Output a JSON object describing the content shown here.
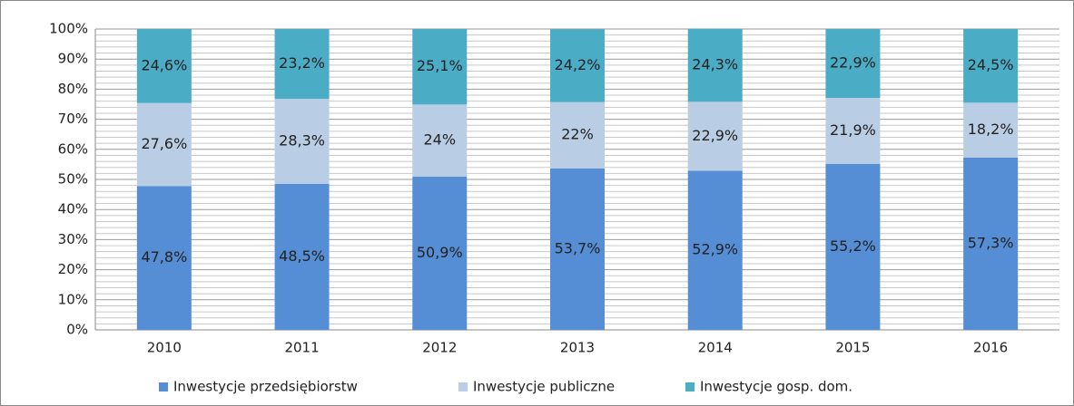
{
  "chart_data": {
    "type": "stacked_bar",
    "categories": [
      "2010",
      "2011",
      "2012",
      "2013",
      "2014",
      "2015",
      "2016"
    ],
    "series": [
      {
        "name": "Inwestycje przedsiębiorstw",
        "color": "#558ed5",
        "values": [
          47.8,
          48.5,
          50.9,
          53.7,
          52.9,
          55.2,
          57.3
        ],
        "value_labels": [
          "47,8%",
          "48,5%",
          "50,9%",
          "53,7%",
          "52,9%",
          "55,2%",
          "57,3%"
        ]
      },
      {
        "name": "Inwestycje publiczne",
        "color": "#b9cde5",
        "values": [
          27.6,
          28.3,
          24,
          22,
          22.9,
          21.9,
          18.2
        ],
        "value_labels": [
          "27,6%",
          "28,3%",
          "24%",
          "22%",
          "22,9%",
          "21,9%",
          "18,2%"
        ]
      },
      {
        "name": "Inwestycje gosp. dom.",
        "color": "#4bacc6",
        "values": [
          24.6,
          23.2,
          25.1,
          24.2,
          24.3,
          22.9,
          24.5
        ],
        "value_labels": [
          "24,6%",
          "23,2%",
          "25,1%",
          "24,2%",
          "24,3%",
          "22,9%",
          "24,5%"
        ]
      }
    ],
    "ylim": [
      0,
      100
    ],
    "yticks": [
      {
        "value": 0,
        "label": "0%"
      },
      {
        "value": 10,
        "label": "10%"
      },
      {
        "value": 20,
        "label": "20%"
      },
      {
        "value": 30,
        "label": "30%"
      },
      {
        "value": 40,
        "label": "40%"
      },
      {
        "value": 50,
        "label": "50%"
      },
      {
        "value": 60,
        "label": "60%"
      },
      {
        "value": 70,
        "label": "70%"
      },
      {
        "value": 80,
        "label": "80%"
      },
      {
        "value": 90,
        "label": "90%"
      },
      {
        "value": 100,
        "label": "100%"
      }
    ],
    "minor_yticks": [
      2,
      4,
      6,
      8,
      12,
      14,
      16,
      18,
      22,
      24,
      26,
      28,
      32,
      34,
      36,
      38,
      42,
      44,
      46,
      48,
      52,
      54,
      56,
      58,
      62,
      64,
      66,
      68,
      72,
      74,
      76,
      78,
      82,
      84,
      86,
      88,
      92,
      94,
      96,
      98
    ],
    "grid": true,
    "legend": "bottom"
  }
}
